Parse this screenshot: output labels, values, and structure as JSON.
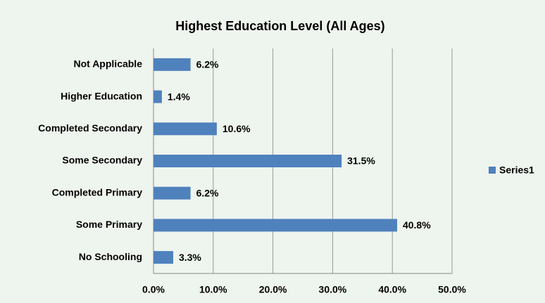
{
  "chart_data": {
    "type": "hbar",
    "title": "Highest Education Level (All Ages)",
    "categories": [
      "Not Applicable",
      "Higher Education",
      "Completed Secondary",
      "Some Secondary",
      "Completed Primary",
      "Some Primary",
      "No Schooling"
    ],
    "series": [
      {
        "name": "Series1",
        "color": "#4f81bd",
        "values": [
          6.2,
          1.4,
          10.6,
          31.5,
          6.2,
          40.8,
          3.3
        ],
        "value_labels": [
          "6.2%",
          "1.4%",
          "10.6%",
          "31.5%",
          "6.2%",
          "40.8%",
          "3.3%"
        ]
      }
    ],
    "xlim": [
      0,
      50
    ],
    "xticks": [
      {
        "value": 0,
        "label": "0.0%"
      },
      {
        "value": 10,
        "label": "10.0%"
      },
      {
        "value": 20,
        "label": "20.0%"
      },
      {
        "value": 30,
        "label": "30.0%"
      },
      {
        "value": 40,
        "label": "40.0%"
      },
      {
        "value": 50,
        "label": "50.0%"
      }
    ],
    "grid": true,
    "legend": "right"
  }
}
